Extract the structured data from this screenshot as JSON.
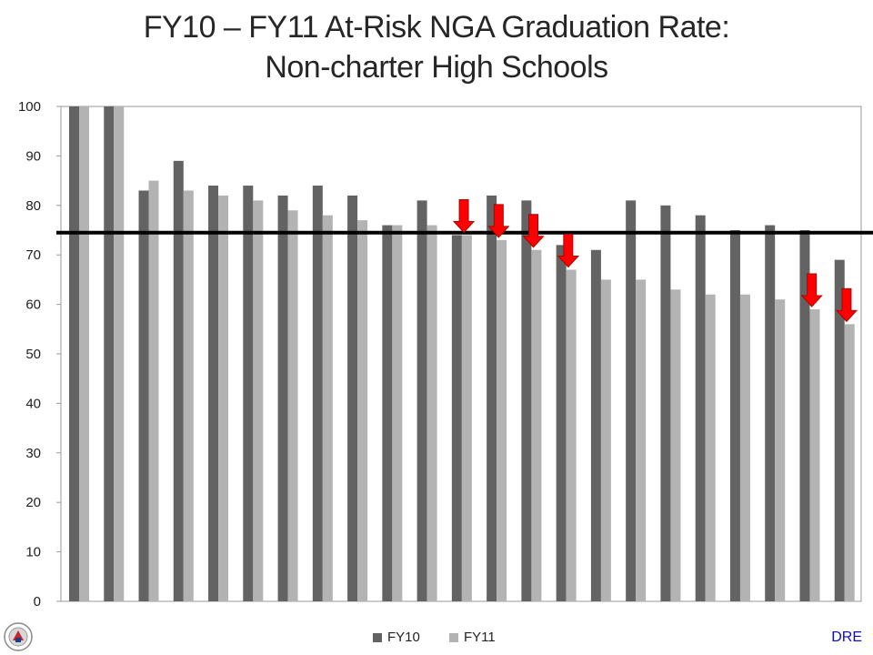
{
  "title_line1": "FY10 – FY11 At-Risk NGA Graduation Rate:",
  "title_line2": "Non-charter High Schools",
  "footer_label": "DRE",
  "colors": {
    "fy10": "#636363",
    "fy11": "#b3b3b3",
    "target_line": "#000000",
    "arrow": "#ff0000",
    "footer_label": "#0b0bd9"
  },
  "chart_data": {
    "type": "bar",
    "categories": [
      "",
      "",
      "",
      "",
      "",
      "",
      "",
      "",
      "",
      "",
      "",
      "",
      "",
      "",
      "",
      "",
      "",
      "",
      "",
      "",
      "",
      "",
      ""
    ],
    "series": [
      {
        "name": "FY10",
        "values": [
          100,
          100,
          83,
          89,
          84,
          84,
          82,
          84,
          82,
          76,
          81,
          74,
          82,
          81,
          72,
          71,
          81,
          80,
          78,
          75,
          76,
          75,
          69
        ]
      },
      {
        "name": "FY11",
        "values": [
          100,
          100,
          85,
          83,
          82,
          81,
          79,
          78,
          77,
          76,
          76,
          74,
          73,
          71,
          67,
          65,
          65,
          63,
          62,
          62,
          61,
          59,
          56
        ]
      }
    ],
    "ylim": [
      0,
      100
    ],
    "yticks": [
      0,
      10,
      20,
      30,
      40,
      50,
      60,
      70,
      80,
      90,
      100
    ],
    "reference_line_y": 74.5,
    "decline_arrow_categories": [
      11,
      12,
      13,
      14,
      21,
      22
    ],
    "grid": false,
    "legend_position": "bottom",
    "xlabel": "",
    "ylabel": ""
  }
}
